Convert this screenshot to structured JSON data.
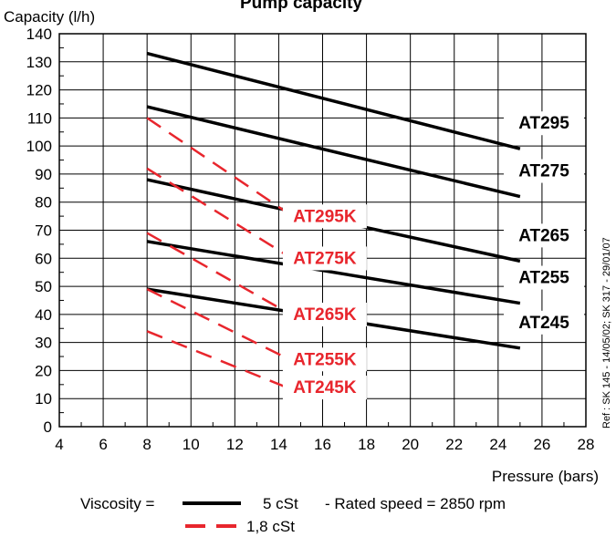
{
  "chart_data": {
    "type": "line",
    "title": "Pump capacity",
    "ylabel": "Capacity   (l/h)",
    "xlabel": "Pressure  (bars)",
    "xlim": [
      4,
      28
    ],
    "ylim": [
      0,
      140
    ],
    "xticks": [
      4,
      6,
      8,
      10,
      12,
      14,
      16,
      18,
      20,
      22,
      24,
      26,
      28
    ],
    "yticks": [
      0,
      10,
      20,
      30,
      40,
      50,
      60,
      70,
      80,
      90,
      100,
      110,
      120,
      130,
      140
    ],
    "grid": true,
    "series": [
      {
        "name": "AT295",
        "viscosity": "5 cSt",
        "color": "#000000",
        "style": "solid",
        "x": [
          8,
          25
        ],
        "y": [
          133,
          99
        ]
      },
      {
        "name": "AT275",
        "viscosity": "5 cSt",
        "color": "#000000",
        "style": "solid",
        "x": [
          8,
          25
        ],
        "y": [
          114,
          82
        ]
      },
      {
        "name": "AT265",
        "viscosity": "5 cSt",
        "color": "#000000",
        "style": "solid",
        "x": [
          8,
          25
        ],
        "y": [
          88,
          59
        ]
      },
      {
        "name": "AT255",
        "viscosity": "5 cSt",
        "color": "#000000",
        "style": "solid",
        "x": [
          8,
          25
        ],
        "y": [
          66,
          44
        ]
      },
      {
        "name": "AT245",
        "viscosity": "5 cSt",
        "color": "#000000",
        "style": "solid",
        "x": [
          8,
          25
        ],
        "y": [
          49,
          28
        ]
      },
      {
        "name": "AT295K",
        "viscosity": "1,8 cSt",
        "color": "#e8262d",
        "style": "dashed",
        "x": [
          8,
          15
        ],
        "y": [
          110,
          73
        ]
      },
      {
        "name": "AT275K",
        "viscosity": "1,8 cSt",
        "color": "#e8262d",
        "style": "dashed",
        "x": [
          8,
          15
        ],
        "y": [
          92,
          58
        ]
      },
      {
        "name": "AT265K",
        "viscosity": "1,8 cSt",
        "color": "#e8262d",
        "style": "dashed",
        "x": [
          8,
          15
        ],
        "y": [
          69,
          38
        ]
      },
      {
        "name": "AT255K",
        "viscosity": "1,8 cSt",
        "color": "#e8262d",
        "style": "dashed",
        "x": [
          8,
          15
        ],
        "y": [
          49,
          22
        ]
      },
      {
        "name": "AT245K",
        "viscosity": "1,8 cSt",
        "color": "#e8262d",
        "style": "dashed",
        "x": [
          8,
          15
        ],
        "y": [
          34,
          12
        ]
      }
    ],
    "legend": {
      "prefix": "Viscosity  =",
      "entries": [
        {
          "label": "5 cSt",
          "style": "solid",
          "color": "#000000"
        },
        {
          "label": "1,8 cSt",
          "style": "dashed",
          "color": "#e8262d"
        }
      ],
      "note": "- Rated speed = 2850 rpm"
    },
    "reference": "Ref : SK 145 - 14/05/02; SK 317 - 29/01/07"
  }
}
